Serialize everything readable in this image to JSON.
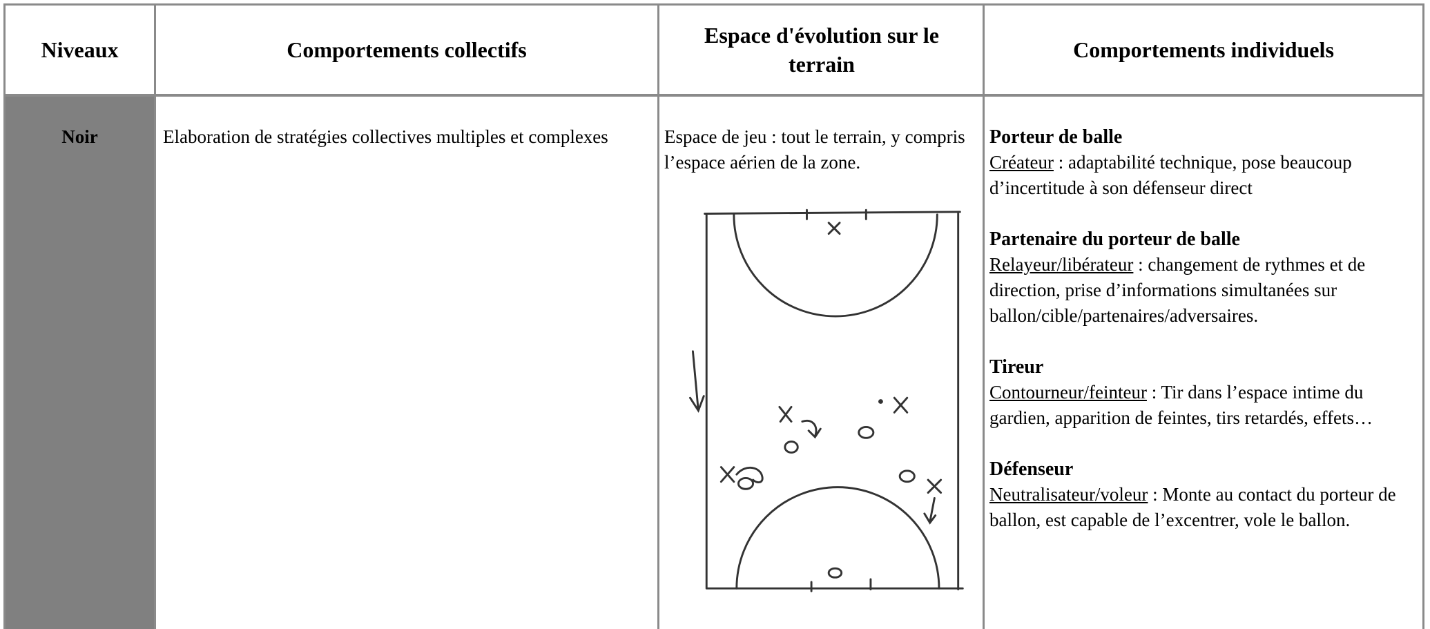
{
  "table": {
    "headers": [
      "Niveaux",
      "Comportements collectifs",
      "Espace d'évolution sur le terrain",
      "Comportements individuels"
    ],
    "rows": [
      {
        "level": "Noir",
        "collective": "Elaboration de stratégies collectives multiples et complexes",
        "space": "Espace de jeu : tout le terrain, y compris l’espace aérien de la zone.",
        "individual": [
          {
            "title": "Porteur de balle",
            "role": "Créateur",
            "description": " : adaptabilité technique, pose beaucoup d’incertitude  à son défenseur direct"
          },
          {
            "title": "Partenaire du porteur de balle",
            "role": "Relayeur/libérateur",
            "description": " : changement de rythmes et de direction, prise d’informations simultanées sur ballon/cible/partenaires/adversaires."
          },
          {
            "title": "Tireur",
            "role": "Contourneur/feinteur",
            "description": " :  Tir dans l’espace intime du gardien, apparition de feintes, tirs retardés, effets…"
          },
          {
            "title": "Défenseur",
            "role": "Neutralisateur/voleur",
            "description": " : Monte au contact du porteur de ballon, est capable de l’excentrer, vole le ballon."
          }
        ]
      }
    ]
  }
}
